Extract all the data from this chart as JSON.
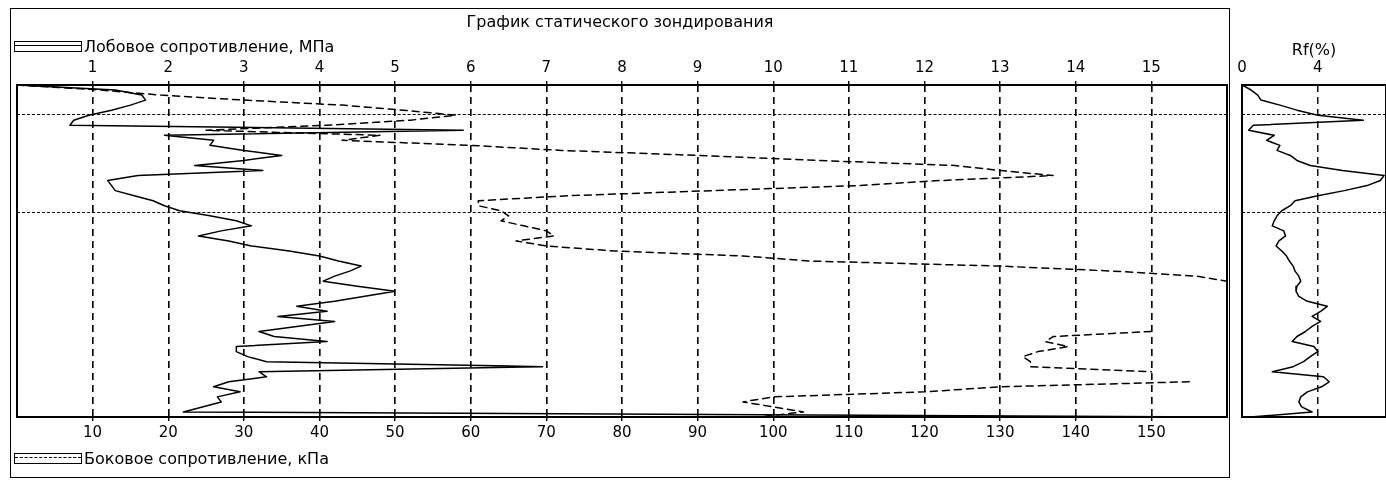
{
  "chart_data": [
    {
      "type": "line",
      "title": "График статического зондирования",
      "orientation": "horizontal",
      "legend": "left",
      "grid": "x",
      "categories": [
        null,
        null,
        null,
        null,
        null,
        null,
        null,
        null,
        null,
        null,
        null,
        null,
        null,
        null,
        null,
        null,
        null,
        null,
        null,
        null,
        null,
        null,
        null,
        null,
        null,
        null,
        null,
        null,
        null,
        null,
        null,
        null,
        null,
        null,
        null,
        null,
        null,
        null,
        null,
        null,
        null,
        null,
        null,
        null,
        null,
        null,
        null,
        null,
        null,
        null,
        null,
        null,
        null,
        null,
        null,
        null,
        null,
        null,
        null,
        null,
        null,
        null,
        null,
        null,
        null,
        null,
        null
      ],
      "series": [
        {
          "name": "Лобовое сопротивление, МПа",
          "color": "#000000",
          "axis": "x2",
          "line_style": "solid",
          "values": [
            0,
            1.3,
            1.65,
            1.7,
            1.5,
            1.25,
            0.95,
            0.75,
            0.7,
            5.9,
            1.95,
            2.6,
            2.55,
            3.0,
            3.5,
            3.0,
            2.35,
            3.25,
            1.6,
            1.2,
            1.25,
            1.3,
            1.55,
            1.8,
            1.95,
            2.15,
            2.55,
            2.9,
            3.1,
            2.7,
            2.4,
            2.8,
            3.1,
            3.6,
            4.0,
            4.25,
            4.55,
            4.4,
            4.2,
            4.05,
            4.5,
            5.0,
            4.6,
            4.2,
            3.7,
            4.1,
            3.45,
            4.2,
            3.7,
            3.2,
            3.4,
            4.1,
            2.9,
            2.9,
            3.05,
            3.3,
            6.95,
            3.2,
            3.3,
            2.8,
            2.6,
            2.95,
            2.65,
            2.7,
            2.45,
            2.2,
            15.9
          ]
        },
        {
          "name": "Боковое сопротивление, кПа",
          "color": "#000000",
          "line_style": "dashed",
          "values": [
            0,
            11,
            19,
            30,
            43,
            51,
            58,
            52,
            41,
            25,
            48,
            43,
            60,
            72,
            90,
            106,
            124,
            130,
            137,
            122,
            111,
            92,
            73,
            61,
            61,
            64,
            65,
            64,
            67,
            70,
            71,
            66,
            70,
            79,
            96,
            105,
            130,
            145,
            156,
            160,
            null,
            null,
            null,
            null,
            null,
            null,
            null,
            null,
            null,
            150,
            137,
            136,
            139,
            135,
            133,
            134,
            134,
            150,
            null,
            155,
            130,
            120,
            100,
            96,
            100,
            104,
            98
          ]
        }
      ],
      "xlim": [
        0,
        160
      ],
      "xticks": [
        10,
        20,
        30,
        40,
        50,
        60,
        70,
        80,
        90,
        100,
        110,
        120,
        130,
        140,
        150
      ],
      "x2lim": [
        0,
        16
      ],
      "x2ticks": [
        1,
        2,
        3,
        4,
        5,
        6,
        7,
        8,
        9,
        10,
        11,
        12,
        13,
        14,
        15
      ]
    },
    {
      "type": "line",
      "title": "Rf(%)",
      "orientation": "horizontal",
      "categories": [
        null,
        null,
        null,
        null,
        null,
        null,
        null,
        null,
        null,
        null,
        null,
        null,
        null,
        null,
        null,
        null,
        null,
        null,
        null,
        null,
        null,
        null,
        null,
        null,
        null,
        null,
        null,
        null,
        null,
        null,
        null,
        null,
        null,
        null,
        null,
        null,
        null,
        null,
        null,
        null,
        null,
        null,
        null,
        null,
        null,
        null,
        null,
        null,
        null,
        null,
        null,
        null,
        null,
        null,
        null,
        null,
        null,
        null,
        null,
        null,
        null,
        null,
        null,
        null,
        null,
        null,
        null
      ],
      "series": [
        {
          "color": "#000000",
          "axis": "x2",
          "line_style": "solid",
          "values": [
            0,
            0.48,
            0.83,
            1.0,
            2.0,
            2.9,
            4.0,
            6.4,
            0.6,
            0.35,
            1.7,
            1.3,
            2.0,
            1.85,
            2.55,
            2.9,
            3.6,
            5.3,
            7.5,
            7.3,
            6.6,
            5.4,
            4.0,
            2.8,
            2.55,
            2.1,
            1.85,
            1.7,
            1.6,
            2.2,
            2.3,
            1.95,
            1.8,
            2.1,
            2.35,
            2.5,
            2.7,
            2.8,
            3.0,
            3.1,
            2.9,
            2.85,
            3.0,
            3.45,
            4.5,
            4.15,
            3.7,
            4.15,
            3.7,
            3.35,
            2.9,
            2.65,
            3.8,
            4.0,
            3.6,
            3.25,
            2.7,
            1.6,
            4.3,
            4.6,
            4.2,
            3.45,
            3.1,
            3.0,
            3.15,
            3.7,
            0.45
          ]
        }
      ],
      "x2lim": [
        0,
        7.6
      ],
      "x2ticks": [
        0,
        4
      ],
      "ref_lines": [
        {
          "axis": "x2",
          "value": 4,
          "color": "#000000",
          "line_style": "dashed"
        }
      ]
    }
  ]
}
